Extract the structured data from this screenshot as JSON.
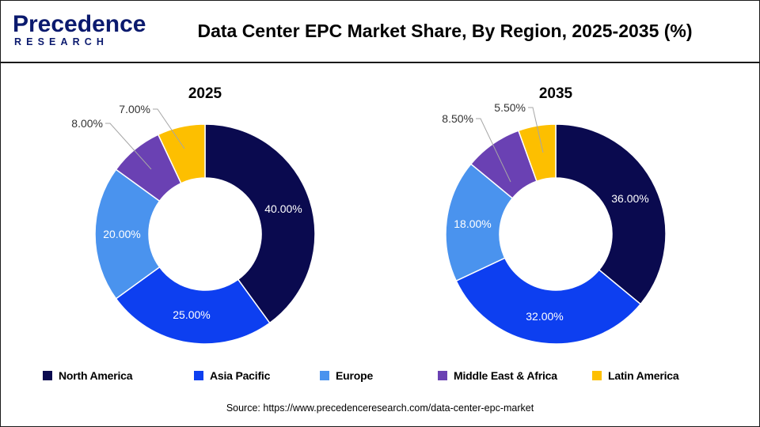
{
  "header": {
    "logo_main": "Precedence",
    "logo_sub": "RESEARCH",
    "title": "Data Center EPC Market Share, By Region, 2025-2035 (%)"
  },
  "colors": {
    "North America": "#0a0a4f",
    "Asia Pacific": "#0d3ff0",
    "Europe": "#4a93ee",
    "Middle East & Africa": "#6a41b3",
    "Latin America": "#fdbf00"
  },
  "chart_data": [
    {
      "type": "donut",
      "title": "2025",
      "categories": [
        "North America",
        "Asia Pacific",
        "Europe",
        "Middle East & Africa",
        "Latin America"
      ],
      "values": [
        40.0,
        25.0,
        20.0,
        8.0,
        7.0
      ],
      "labels": [
        "40.00%",
        "25.00%",
        "20.00%",
        "8.00%",
        "7.00%"
      ]
    },
    {
      "type": "donut",
      "title": "2035",
      "categories": [
        "North America",
        "Asia Pacific",
        "Europe",
        "Middle East & Africa",
        "Latin America"
      ],
      "values": [
        36.0,
        32.0,
        18.0,
        8.5,
        5.5
      ],
      "labels": [
        "36.00%",
        "32.00%",
        "18.00%",
        "8.50%",
        "5.50%"
      ]
    }
  ],
  "legend": [
    "North America",
    "Asia Pacific",
    "Europe",
    "Middle East & Africa",
    "Latin America"
  ],
  "source": "Source: https://www.precedenceresearch.com/data-center-epc-market"
}
